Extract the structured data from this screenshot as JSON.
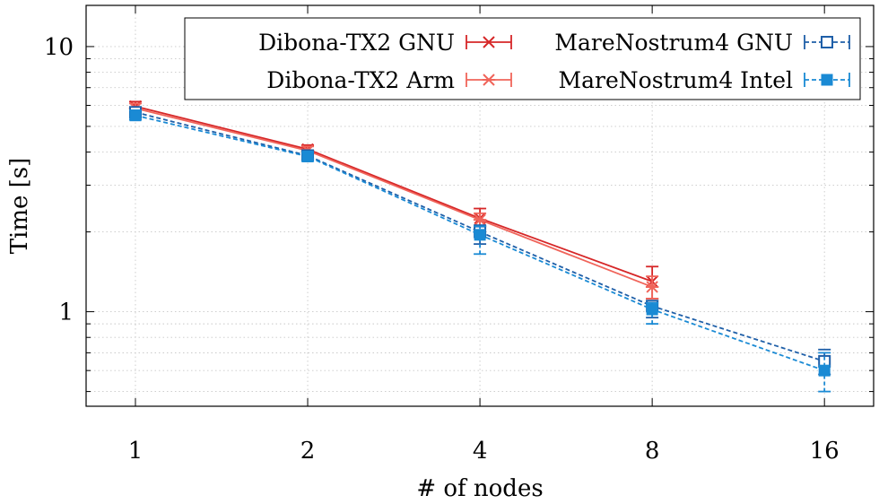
{
  "chart_data": {
    "type": "line",
    "title": "",
    "xlabel": "# of nodes",
    "ylabel": "Time [s]",
    "x_scale": "log2",
    "y_scale": "log10",
    "xlim": [
      0.82,
      19.5
    ],
    "ylim": [
      0.44,
      14.3
    ],
    "x": [
      1,
      2,
      4,
      8,
      16
    ],
    "x_tick_labels": [
      "1",
      "2",
      "4",
      "8",
      "16"
    ],
    "y_ticks": [
      1,
      10
    ],
    "y_tick_labels": [
      "1",
      "10"
    ],
    "grid": true,
    "legend_position": "top-right",
    "series": [
      {
        "name": "Dibona-TX2 GNU",
        "color": "#d62728",
        "marker": "x",
        "dash": "solid",
        "values": [
          5.95,
          4.1,
          2.25,
          1.3,
          null
        ],
        "err_low": [
          5.7,
          3.95,
          2.1,
          1.12,
          null
        ],
        "err_high": [
          6.2,
          4.25,
          2.45,
          1.48,
          null
        ]
      },
      {
        "name": "Dibona-TX2 Arm",
        "color": "#f0645a",
        "marker": "asterisk",
        "dash": "solid",
        "values": [
          5.85,
          4.05,
          2.22,
          1.24,
          null
        ],
        "err_low": [
          5.65,
          3.9,
          2.1,
          1.12,
          null
        ],
        "err_high": [
          6.1,
          4.2,
          2.35,
          1.36,
          null
        ]
      },
      {
        "name": "MareNostrum4 GNU",
        "color": "#1f5fa8",
        "marker": "open-square",
        "dash": "dashed",
        "values": [
          5.65,
          3.88,
          2.0,
          1.05,
          0.65
        ],
        "err_low": [
          5.45,
          3.75,
          1.8,
          0.95,
          0.58
        ],
        "err_high": [
          5.85,
          4.0,
          2.12,
          1.1,
          0.72
        ]
      },
      {
        "name": "MareNostrum4 Intel",
        "color": "#1a8ad4",
        "marker": "filled-square",
        "dash": "dashed",
        "values": [
          5.5,
          3.85,
          1.95,
          1.02,
          0.6
        ],
        "err_low": [
          5.3,
          3.7,
          1.65,
          0.9,
          0.5
        ],
        "err_high": [
          5.75,
          3.98,
          2.1,
          1.08,
          0.7
        ]
      }
    ]
  }
}
